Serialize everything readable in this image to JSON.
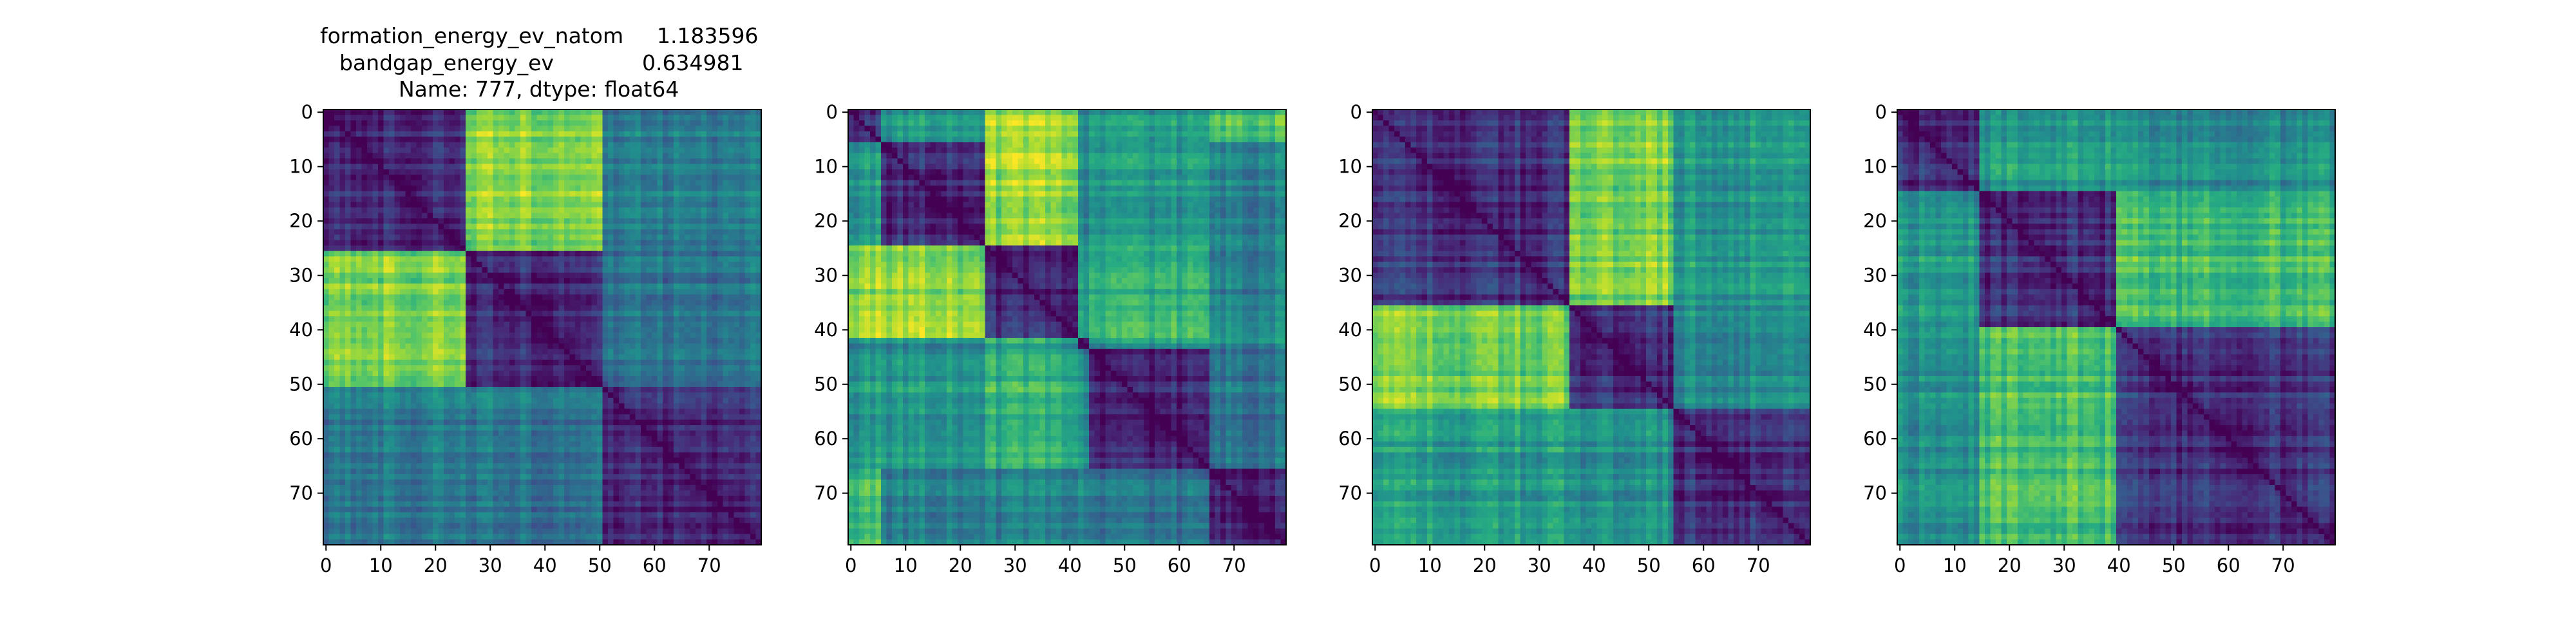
{
  "title": {
    "line1_name": "formation_energy_ev_natom",
    "line1_value": "1.183596",
    "line2_name": "bandgap_energy_ev",
    "line2_value": "0.634981",
    "line3": "Name: 777, dtype: float64"
  },
  "chart_data": [
    {
      "type": "heatmap",
      "title": "",
      "size": 80,
      "colormap": "viridis",
      "xticks": [
        0,
        10,
        20,
        30,
        40,
        50,
        60,
        70
      ],
      "yticks": [
        0,
        10,
        20,
        30,
        40,
        50,
        60,
        70
      ],
      "xlim": [
        0,
        80
      ],
      "ylim": [
        80,
        0
      ],
      "value_range": [
        0,
        1
      ],
      "diagonal_value": 0,
      "blocks": [
        [
          0,
          26
        ],
        [
          26,
          51
        ],
        [
          51,
          80
        ]
      ],
      "block_levels": [
        [
          0.15,
          0.82,
          0.42
        ],
        [
          0.82,
          0.12,
          0.38
        ],
        [
          0.42,
          0.38,
          0.12
        ]
      ]
    },
    {
      "type": "heatmap",
      "title": "",
      "size": 80,
      "colormap": "viridis",
      "xticks": [
        0,
        10,
        20,
        30,
        40,
        50,
        60,
        70
      ],
      "yticks": [
        0,
        10,
        20,
        30,
        40,
        50,
        60,
        70
      ],
      "xlim": [
        0,
        80
      ],
      "ylim": [
        80,
        0
      ],
      "value_range": [
        0,
        1
      ],
      "diagonal_value": 0,
      "blocks": [
        [
          0,
          6
        ],
        [
          6,
          25
        ],
        [
          25,
          42
        ],
        [
          42,
          44
        ],
        [
          44,
          66
        ],
        [
          66,
          80
        ]
      ],
      "block_levels": [
        [
          0.2,
          0.55,
          0.85,
          0.5,
          0.55,
          0.7
        ],
        [
          0.55,
          0.15,
          0.85,
          0.5,
          0.55,
          0.45
        ],
        [
          0.85,
          0.85,
          0.12,
          0.6,
          0.65,
          0.45
        ],
        [
          0.5,
          0.5,
          0.6,
          0.15,
          0.55,
          0.5
        ],
        [
          0.55,
          0.55,
          0.65,
          0.55,
          0.12,
          0.4
        ],
        [
          0.7,
          0.45,
          0.45,
          0.5,
          0.4,
          0.12
        ]
      ]
    },
    {
      "type": "heatmap",
      "title": "",
      "size": 80,
      "colormap": "viridis",
      "xticks": [
        0,
        10,
        20,
        30,
        40,
        50,
        60,
        70
      ],
      "yticks": [
        0,
        10,
        20,
        30,
        40,
        50,
        60,
        70
      ],
      "xlim": [
        0,
        80
      ],
      "ylim": [
        80,
        0
      ],
      "value_range": [
        0,
        1
      ],
      "diagonal_value": 0,
      "blocks": [
        [
          0,
          36
        ],
        [
          36,
          55
        ],
        [
          55,
          80
        ]
      ],
      "block_levels": [
        [
          0.15,
          0.8,
          0.55
        ],
        [
          0.8,
          0.15,
          0.5
        ],
        [
          0.55,
          0.5,
          0.15
        ]
      ]
    },
    {
      "type": "heatmap",
      "title": "",
      "size": 80,
      "colormap": "viridis",
      "xticks": [
        0,
        10,
        20,
        30,
        40,
        50,
        60,
        70
      ],
      "yticks": [
        0,
        10,
        20,
        30,
        40,
        50,
        60,
        70
      ],
      "xlim": [
        0,
        80
      ],
      "ylim": [
        80,
        0
      ],
      "value_range": [
        0,
        1
      ],
      "diagonal_value": 0,
      "blocks": [
        [
          0,
          15
        ],
        [
          15,
          40
        ],
        [
          40,
          80
        ]
      ],
      "block_levels": [
        [
          0.15,
          0.55,
          0.5
        ],
        [
          0.55,
          0.15,
          0.7
        ],
        [
          0.5,
          0.7,
          0.15
        ]
      ]
    }
  ]
}
